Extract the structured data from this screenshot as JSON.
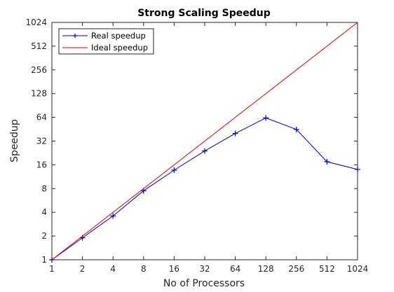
{
  "chart_data": {
    "type": "line",
    "title": "Strong Scaling Speedup",
    "xlabel": "No of Processors",
    "ylabel": "Speedup",
    "x_scale": "log2",
    "y_scale": "log2",
    "xlim": [
      1,
      1024
    ],
    "ylim": [
      1,
      1024
    ],
    "x_ticks": [
      "1",
      "2",
      "4",
      "8",
      "16",
      "32",
      "64",
      "128",
      "256",
      "512",
      "1024"
    ],
    "y_ticks": [
      "1",
      "2",
      "4",
      "8",
      "16",
      "32",
      "64",
      "128",
      "256",
      "512",
      "1024"
    ],
    "legend_position": "top-left",
    "grid": false,
    "series": [
      {
        "name": "Real speedup",
        "color": "#0000cc",
        "marker": "plus",
        "x": [
          1,
          2,
          4,
          8,
          16,
          32,
          64,
          128,
          256,
          512,
          1024
        ],
        "y": [
          1,
          1.9,
          3.6,
          7.5,
          13.7,
          24,
          40,
          63,
          45,
          17.5,
          14
        ]
      },
      {
        "name": "Ideal speedup",
        "color": "#dd0000",
        "marker": "none",
        "x": [
          1,
          1024
        ],
        "y": [
          1,
          1024
        ]
      }
    ]
  }
}
